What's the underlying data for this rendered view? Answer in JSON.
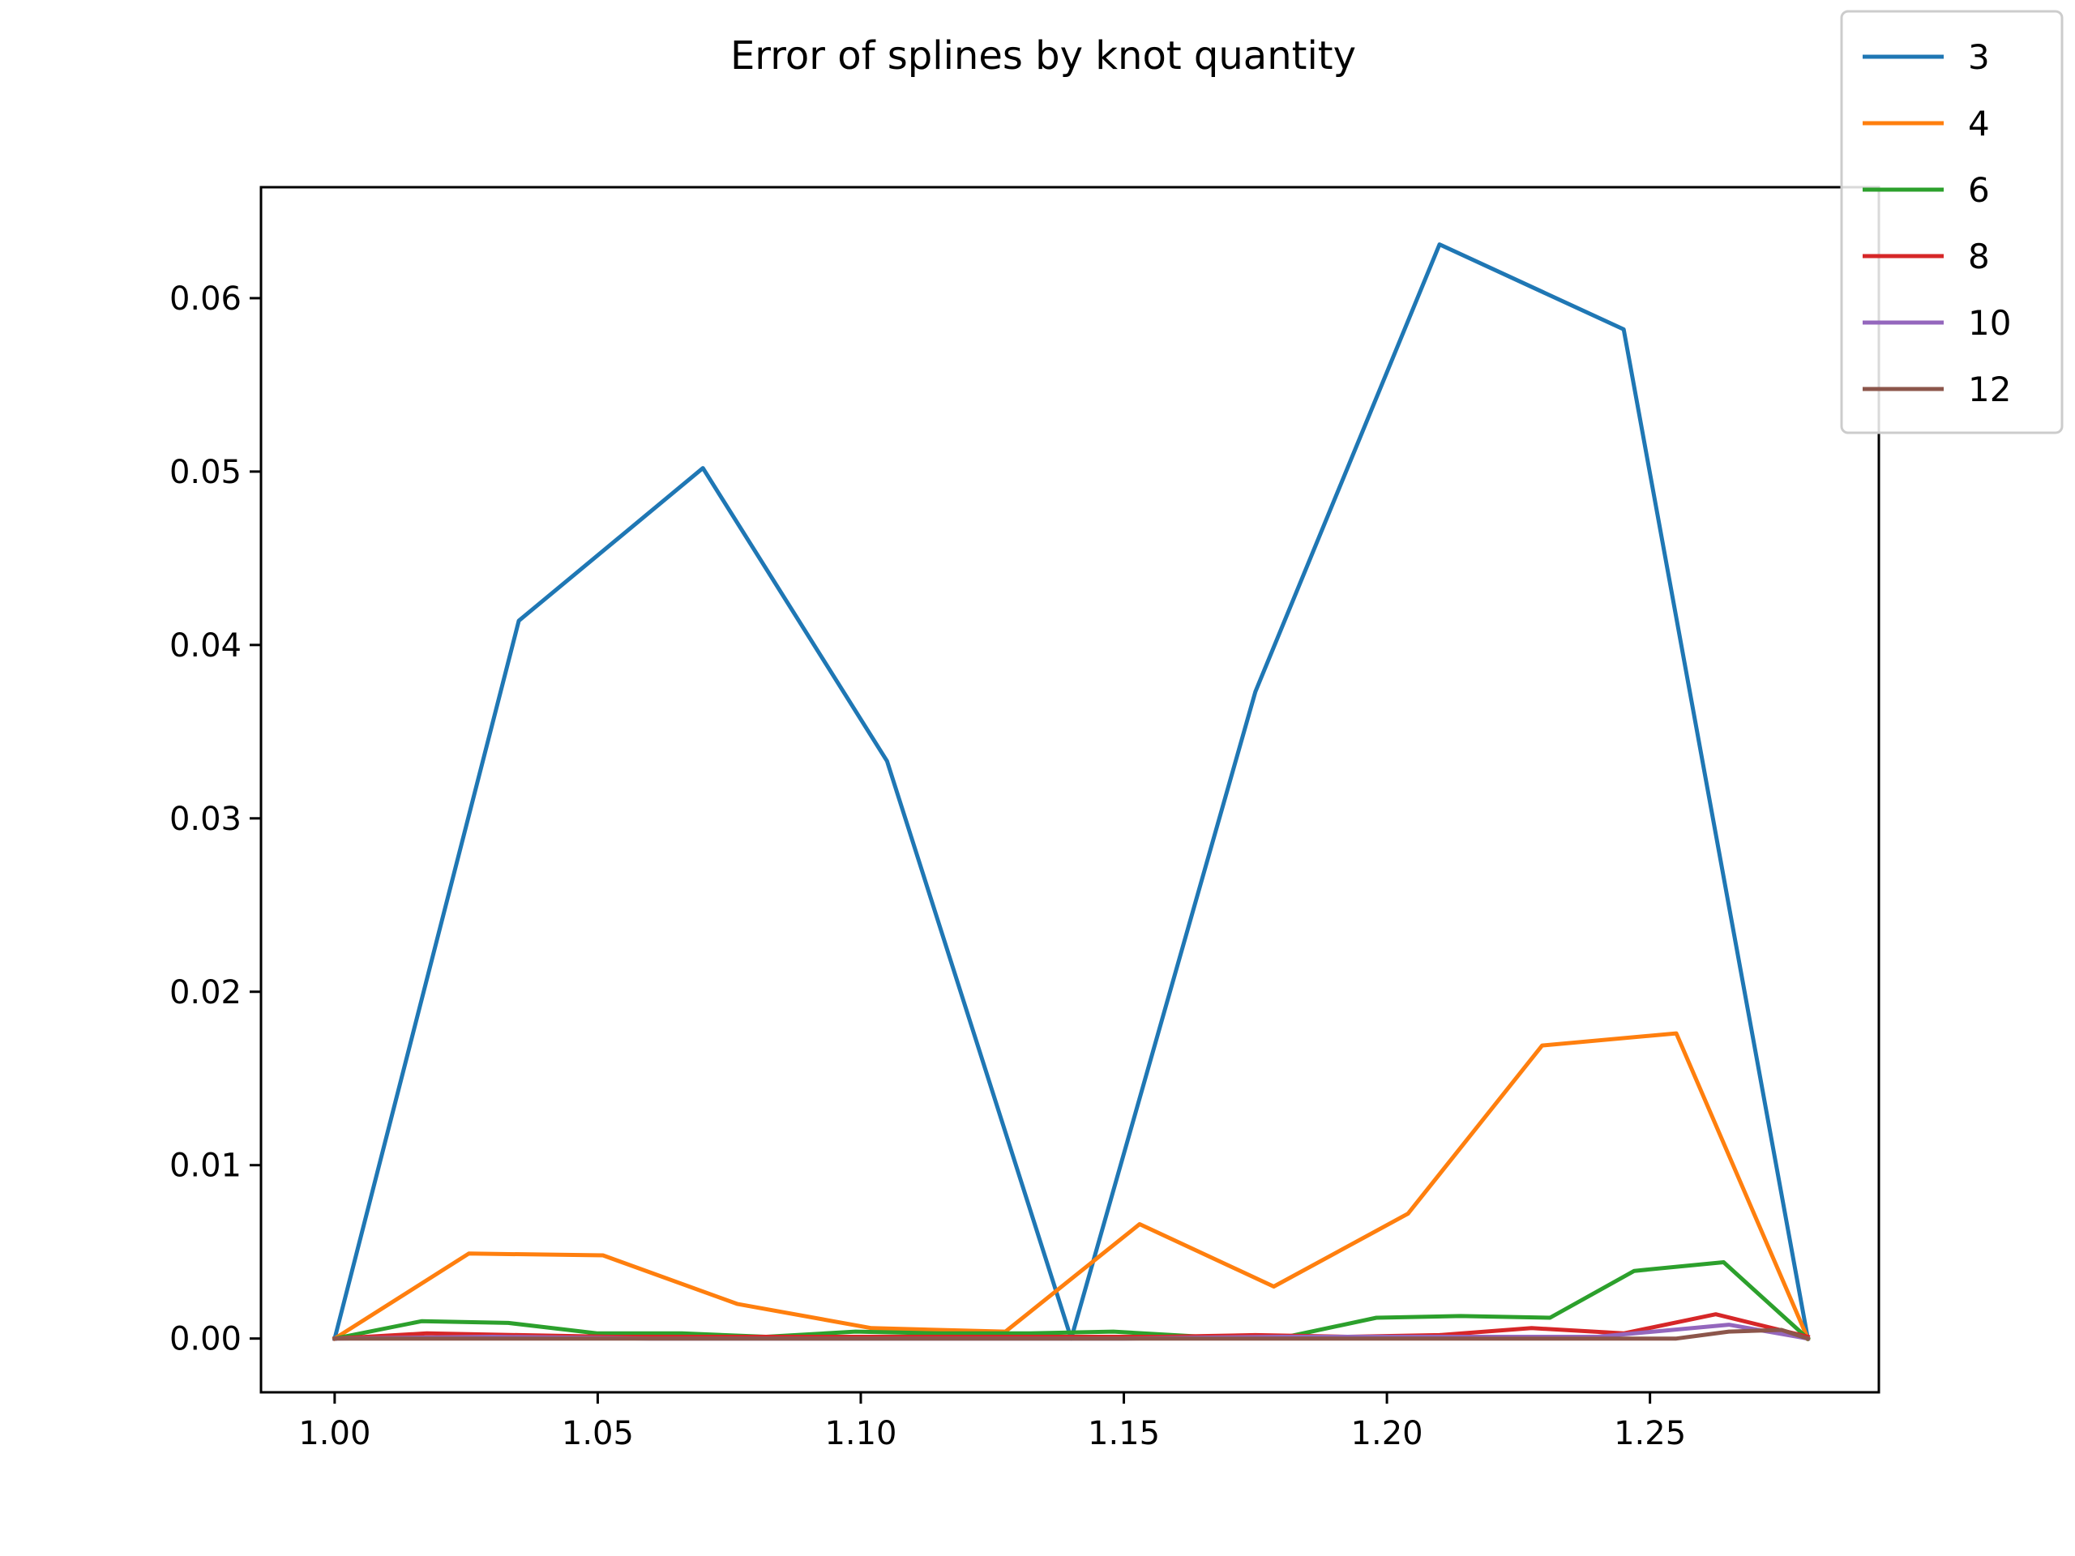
{
  "chart_data": {
    "type": "line",
    "title": "Error of splines by knot quantity",
    "xlabel": "",
    "ylabel": "",
    "xlim": [
      0.986,
      1.2935
    ],
    "ylim": [
      -0.0031,
      0.0664
    ],
    "xticks": [
      1.0,
      1.05,
      1.1,
      1.15,
      1.2,
      1.25
    ],
    "xtick_labels": [
      "1.00",
      "1.05",
      "1.10",
      "1.15",
      "1.20",
      "1.25"
    ],
    "yticks": [
      0.0,
      0.01,
      0.02,
      0.03,
      0.04,
      0.05,
      0.06
    ],
    "ytick_labels": [
      "0.00",
      "0.01",
      "0.02",
      "0.03",
      "0.04",
      "0.05",
      "0.06"
    ],
    "grid": false,
    "legend_position": "top-right",
    "series": [
      {
        "name": "3",
        "color": "#1f77b4",
        "x": [
          1.0,
          1.035,
          1.07,
          1.105,
          1.14,
          1.175,
          1.21,
          1.245,
          1.28
        ],
        "y": [
          0.0,
          0.0414,
          0.0502,
          0.0333,
          0.0,
          0.0373,
          0.0631,
          0.0582,
          0.0
        ]
      },
      {
        "name": "4",
        "color": "#ff7f0e",
        "x": [
          1.0,
          1.0255,
          1.051,
          1.0765,
          1.102,
          1.1275,
          1.153,
          1.1785,
          1.204,
          1.2295,
          1.255,
          1.28
        ],
        "y": [
          0.0,
          0.0049,
          0.0048,
          0.002,
          0.0006,
          0.0004,
          0.0066,
          0.003,
          0.0072,
          0.0169,
          0.0176,
          0.0
        ]
      },
      {
        "name": "6",
        "color": "#2ca02c",
        "x": [
          1.0,
          1.0165,
          1.033,
          1.05,
          1.066,
          1.082,
          1.099,
          1.115,
          1.132,
          1.148,
          1.165,
          1.181,
          1.198,
          1.214,
          1.231,
          1.247,
          1.264,
          1.28
        ],
        "y": [
          0.0,
          0.001,
          0.0009,
          0.0003,
          0.0003,
          0.0001,
          0.0004,
          0.0003,
          0.0003,
          0.0004,
          0.0001,
          0.0001,
          0.0012,
          0.0013,
          0.0012,
          0.0039,
          0.0044,
          0.0
        ]
      },
      {
        "name": "8",
        "color": "#d62728",
        "x": [
          1.0,
          1.0175,
          1.035,
          1.0525,
          1.07,
          1.0875,
          1.105,
          1.1225,
          1.14,
          1.1575,
          1.175,
          1.1925,
          1.21,
          1.2275,
          1.245,
          1.2625,
          1.28
        ],
        "y": [
          0.0,
          0.0003,
          0.0002,
          0.0001,
          0.0001,
          0.0001,
          0.0001,
          0.0001,
          0.0001,
          0.0001,
          0.0002,
          0.0001,
          0.0002,
          0.0006,
          0.0003,
          0.0014,
          0.0001
        ]
      },
      {
        "name": "10",
        "color": "#9467bd",
        "x": [
          1.0,
          1.03,
          1.06,
          1.09,
          1.12,
          1.15,
          1.18,
          1.21,
          1.24,
          1.265,
          1.28
        ],
        "y": [
          0.0,
          0.0001,
          0.0,
          0.0,
          0.0,
          0.0,
          0.0001,
          0.0001,
          0.0001,
          0.0008,
          0.0
        ]
      },
      {
        "name": "12",
        "color": "#8c564b",
        "x": [
          1.0,
          1.025,
          1.05,
          1.075,
          1.1,
          1.125,
          1.15,
          1.175,
          1.2,
          1.225,
          1.24,
          1.255,
          1.265,
          1.275,
          1.28
        ],
        "y": [
          0.0,
          0.0,
          0.0,
          0.0,
          0.0,
          0.0,
          0.0,
          0.0,
          0.0,
          0.0,
          0.0,
          0.0,
          0.0004,
          0.0005,
          0.0
        ]
      }
    ]
  }
}
